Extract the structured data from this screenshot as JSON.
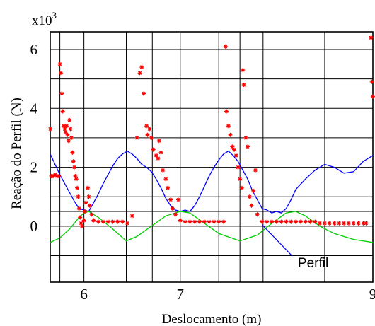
{
  "chart_data": {
    "type": "scatter",
    "title": "",
    "xlabel": "Deslocamento (m)",
    "ylabel": "Reação do Perfil (N)",
    "y_multiplier_label": "x10",
    "y_multiplier_exponent": "3",
    "xlim": [
      5.65,
      9.0
    ],
    "ylim": [
      -1.9,
      6.6
    ],
    "x_ticks": [
      {
        "value": 6,
        "label": "6"
      },
      {
        "value": 7,
        "label": "7"
      },
      {
        "value": 9,
        "label": "9"
      }
    ],
    "y_ticks": [
      {
        "value": 0,
        "label": "0"
      },
      {
        "value": 2,
        "label": "2"
      },
      {
        "value": 4,
        "label": "4"
      },
      {
        "value": 6,
        "label": "6"
      }
    ],
    "x_gridlines": [
      5.65,
      5.75,
      6.0,
      6.44,
      6.71,
      7.0,
      7.4,
      7.62,
      7.86,
      8.5,
      9.0
    ],
    "y_gridlines": [
      -1,
      0,
      0.5,
      1,
      2,
      3,
      4,
      5,
      6
    ],
    "grid": true,
    "annotation": {
      "text": "Perfil",
      "x": 8.25,
      "y": -1.25,
      "arrow_to": [
        7.85,
        0.05
      ]
    },
    "colors": {
      "reaction": "#ff0000",
      "perfil": "#0000ff",
      "green": "#00cc00"
    },
    "series": [
      {
        "name": "Perfil",
        "type": "line",
        "points": [
          [
            5.65,
            2.45
          ],
          [
            5.7,
            2.1
          ],
          [
            5.75,
            1.75
          ],
          [
            5.8,
            1.45
          ],
          [
            5.85,
            1.15
          ],
          [
            5.9,
            0.85
          ],
          [
            5.95,
            0.6
          ],
          [
            6.0,
            0.55
          ],
          [
            6.05,
            0.5
          ],
          [
            6.1,
            0.8
          ],
          [
            6.15,
            1.1
          ],
          [
            6.2,
            1.45
          ],
          [
            6.25,
            1.75
          ],
          [
            6.3,
            2.05
          ],
          [
            6.35,
            2.3
          ],
          [
            6.4,
            2.45
          ],
          [
            6.45,
            2.55
          ],
          [
            6.5,
            2.45
          ],
          [
            6.55,
            2.3
          ],
          [
            6.6,
            2.1
          ],
          [
            6.65,
            2.0
          ],
          [
            6.7,
            1.85
          ],
          [
            6.75,
            1.6
          ],
          [
            6.8,
            1.3
          ],
          [
            6.85,
            0.95
          ],
          [
            6.9,
            0.7
          ],
          [
            6.95,
            0.55
          ],
          [
            7.0,
            0.5
          ],
          [
            7.05,
            0.55
          ],
          [
            7.1,
            0.5
          ],
          [
            7.15,
            0.7
          ],
          [
            7.2,
            1.0
          ],
          [
            7.25,
            1.35
          ],
          [
            7.3,
            1.7
          ],
          [
            7.35,
            2.0
          ],
          [
            7.4,
            2.25
          ],
          [
            7.45,
            2.45
          ],
          [
            7.5,
            2.55
          ],
          [
            7.55,
            2.4
          ],
          [
            7.6,
            2.2
          ],
          [
            7.65,
            1.9
          ],
          [
            7.7,
            1.6
          ],
          [
            7.75,
            1.2
          ],
          [
            7.8,
            0.9
          ],
          [
            7.85,
            0.6
          ],
          [
            7.9,
            0.55
          ],
          [
            7.95,
            0.45
          ],
          [
            8.0,
            0.5
          ],
          [
            8.05,
            0.45
          ],
          [
            8.1,
            0.6
          ],
          [
            8.15,
            0.9
          ],
          [
            8.2,
            1.25
          ],
          [
            8.3,
            1.6
          ],
          [
            8.4,
            1.9
          ],
          [
            8.5,
            2.1
          ],
          [
            8.6,
            2.0
          ],
          [
            8.7,
            1.8
          ],
          [
            8.8,
            1.85
          ],
          [
            8.9,
            2.2
          ],
          [
            9.0,
            2.4
          ]
        ]
      },
      {
        "name": "",
        "type": "line",
        "points": [
          [
            5.65,
            -0.55
          ],
          [
            5.75,
            -0.4
          ],
          [
            5.85,
            -0.1
          ],
          [
            5.95,
            0.3
          ],
          [
            6.0,
            0.45
          ],
          [
            6.05,
            0.5
          ],
          [
            6.15,
            0.3
          ],
          [
            6.3,
            -0.1
          ],
          [
            6.44,
            -0.5
          ],
          [
            6.55,
            -0.35
          ],
          [
            6.7,
            0.0
          ],
          [
            6.85,
            0.35
          ],
          [
            7.0,
            0.5
          ],
          [
            7.1,
            0.45
          ],
          [
            7.25,
            0.1
          ],
          [
            7.4,
            -0.25
          ],
          [
            7.62,
            -0.5
          ],
          [
            7.8,
            -0.3
          ],
          [
            7.95,
            0.1
          ],
          [
            8.1,
            0.45
          ],
          [
            8.2,
            0.5
          ],
          [
            8.3,
            0.35
          ],
          [
            8.45,
            0.0
          ],
          [
            8.6,
            -0.25
          ],
          [
            8.8,
            -0.45
          ],
          [
            9.0,
            -0.55
          ]
        ]
      },
      {
        "name": "",
        "type": "scatter",
        "points": [
          [
            5.65,
            3.3
          ],
          [
            5.66,
            1.7
          ],
          [
            5.68,
            1.7
          ],
          [
            5.7,
            1.75
          ],
          [
            5.72,
            1.7
          ],
          [
            5.74,
            1.7
          ],
          [
            5.75,
            5.5
          ],
          [
            5.76,
            5.2
          ],
          [
            5.77,
            4.5
          ],
          [
            5.78,
            3.9
          ],
          [
            5.79,
            3.4
          ],
          [
            5.8,
            3.3
          ],
          [
            5.81,
            3.2
          ],
          [
            5.82,
            3.4
          ],
          [
            5.83,
            3.1
          ],
          [
            5.84,
            2.9
          ],
          [
            5.85,
            3.6
          ],
          [
            5.86,
            3.3
          ],
          [
            5.87,
            3.0
          ],
          [
            5.88,
            2.5
          ],
          [
            5.89,
            2.2
          ],
          [
            5.9,
            2.0
          ],
          [
            5.91,
            1.7
          ],
          [
            5.92,
            1.6
          ],
          [
            5.93,
            1.3
          ],
          [
            5.94,
            1.0
          ],
          [
            5.95,
            0.6
          ],
          [
            5.96,
            0.3
          ],
          [
            5.97,
            0.1
          ],
          [
            5.98,
            0.0
          ],
          [
            6.0,
            0.2
          ],
          [
            6.01,
            0.5
          ],
          [
            6.02,
            0.8
          ],
          [
            6.04,
            1.3
          ],
          [
            6.05,
            1.0
          ],
          [
            6.06,
            0.7
          ],
          [
            6.08,
            0.4
          ],
          [
            6.1,
            0.2
          ],
          [
            6.15,
            0.15
          ],
          [
            6.2,
            0.15
          ],
          [
            6.25,
            0.15
          ],
          [
            6.3,
            0.15
          ],
          [
            6.35,
            0.15
          ],
          [
            6.4,
            0.15
          ],
          [
            6.45,
            0.1
          ],
          [
            6.5,
            0.35
          ],
          [
            6.55,
            3.0
          ],
          [
            6.58,
            5.2
          ],
          [
            6.6,
            5.4
          ],
          [
            6.62,
            4.5
          ],
          [
            6.65,
            3.4
          ],
          [
            6.66,
            3.1
          ],
          [
            6.68,
            3.3
          ],
          [
            6.7,
            3.0
          ],
          [
            6.72,
            2.6
          ],
          [
            6.75,
            2.4
          ],
          [
            6.77,
            2.3
          ],
          [
            6.78,
            2.9
          ],
          [
            6.8,
            2.5
          ],
          [
            6.82,
            1.9
          ],
          [
            6.85,
            1.6
          ],
          [
            6.87,
            1.3
          ],
          [
            6.9,
            0.9
          ],
          [
            6.92,
            0.6
          ],
          [
            6.95,
            0.4
          ],
          [
            6.98,
            0.9
          ],
          [
            7.0,
            0.2
          ],
          [
            7.05,
            0.15
          ],
          [
            7.1,
            0.15
          ],
          [
            7.15,
            0.15
          ],
          [
            7.2,
            0.15
          ],
          [
            7.25,
            0.15
          ],
          [
            7.3,
            0.15
          ],
          [
            7.35,
            0.15
          ],
          [
            7.4,
            0.15
          ],
          [
            7.45,
            0.15
          ],
          [
            7.47,
            6.1
          ],
          [
            7.48,
            3.9
          ],
          [
            7.5,
            3.4
          ],
          [
            7.52,
            3.1
          ],
          [
            7.54,
            2.7
          ],
          [
            7.56,
            2.6
          ],
          [
            7.58,
            2.4
          ],
          [
            7.6,
            2.0
          ],
          [
            7.62,
            1.6
          ],
          [
            7.64,
            1.3
          ],
          [
            7.65,
            5.3
          ],
          [
            7.66,
            4.8
          ],
          [
            7.68,
            3.0
          ],
          [
            7.7,
            2.7
          ],
          [
            7.72,
            1.0
          ],
          [
            7.74,
            0.7
          ],
          [
            7.76,
            1.2
          ],
          [
            7.78,
            1.9
          ],
          [
            7.8,
            0.4
          ],
          [
            7.85,
            0.15
          ],
          [
            7.9,
            0.15
          ],
          [
            7.95,
            0.15
          ],
          [
            8.0,
            0.15
          ],
          [
            8.05,
            0.15
          ],
          [
            8.1,
            0.15
          ],
          [
            8.15,
            0.15
          ],
          [
            8.2,
            0.15
          ],
          [
            8.25,
            0.15
          ],
          [
            8.3,
            0.15
          ],
          [
            8.35,
            0.15
          ],
          [
            8.4,
            0.15
          ],
          [
            8.45,
            0.1
          ],
          [
            8.5,
            0.1
          ],
          [
            8.55,
            0.1
          ],
          [
            8.6,
            0.1
          ],
          [
            8.65,
            0.1
          ],
          [
            8.7,
            0.1
          ],
          [
            8.75,
            0.1
          ],
          [
            8.8,
            0.1
          ],
          [
            8.85,
            0.1
          ],
          [
            8.9,
            0.1
          ],
          [
            8.93,
            0.1
          ],
          [
            8.98,
            6.4
          ],
          [
            8.99,
            4.9
          ],
          [
            9.0,
            4.4
          ]
        ]
      }
    ]
  }
}
